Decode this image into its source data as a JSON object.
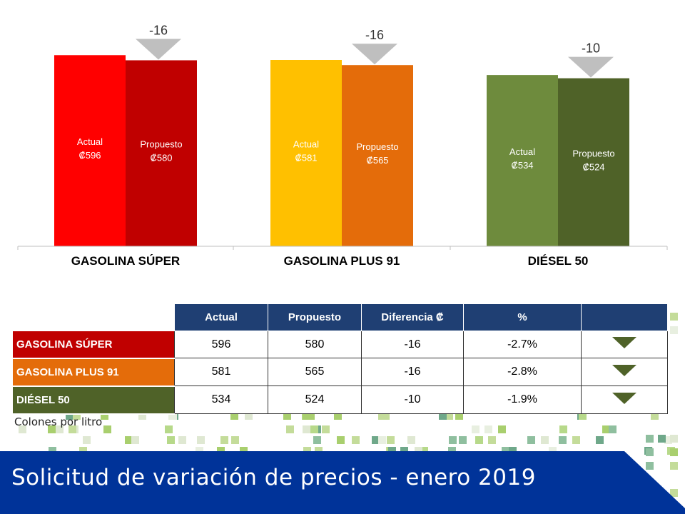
{
  "chart_data": {
    "type": "bar",
    "categories": [
      "GASOLINA SÚPER",
      "GASOLINA PLUS 91",
      "DIÉSEL 50"
    ],
    "series": [
      {
        "name": "Actual",
        "values": [
          596,
          581,
          534
        ],
        "colors": [
          "#ff0000",
          "#ffc000",
          "#6e8b3d"
        ]
      },
      {
        "name": "Propuesto",
        "values": [
          580,
          565,
          524
        ],
        "colors": [
          "#c00000",
          "#e46c0a",
          "#4f6228"
        ]
      }
    ],
    "bar_text": [
      {
        "actual": "Actual",
        "actual_value": "₡596",
        "proposed": "Propuesto",
        "proposed_value": "₡580"
      },
      {
        "actual": "Actual",
        "actual_value": "₡581",
        "proposed": "Propuesto",
        "proposed_value": "₡565"
      },
      {
        "actual": "Actual",
        "actual_value": "₡534",
        "proposed": "Propuesto",
        "proposed_value": "₡524"
      }
    ],
    "differences": [
      "-16",
      "-16",
      "-10"
    ],
    "ylim": [
      0,
      640
    ]
  },
  "table": {
    "headers": [
      "Actual",
      "Propuesto",
      "Diferencia ₡",
      "%"
    ],
    "rows": [
      {
        "label": "GASOLINA SÚPER",
        "color": "#c00000",
        "actual": "596",
        "propuesto": "580",
        "diferencia": "-16",
        "pct": "-2.7%"
      },
      {
        "label": "GASOLINA PLUS 91",
        "color": "#e46c0a",
        "actual": "581",
        "propuesto": "565",
        "diferencia": "-16",
        "pct": "-2.8%"
      },
      {
        "label": "DIÉSEL 50",
        "color": "#4f6228",
        "actual": "534",
        "propuesto": "524",
        "diferencia": "-10",
        "pct": "-1.9%"
      }
    ]
  },
  "units_note": "Colones por litro",
  "footer": {
    "title": "Solicitud de variación de precios - enero 2019"
  },
  "colors": {
    "banner": "#003399",
    "header": "#1f3f73",
    "arrow_gray": "#bfbfbf",
    "triangle": "#4f6228"
  }
}
